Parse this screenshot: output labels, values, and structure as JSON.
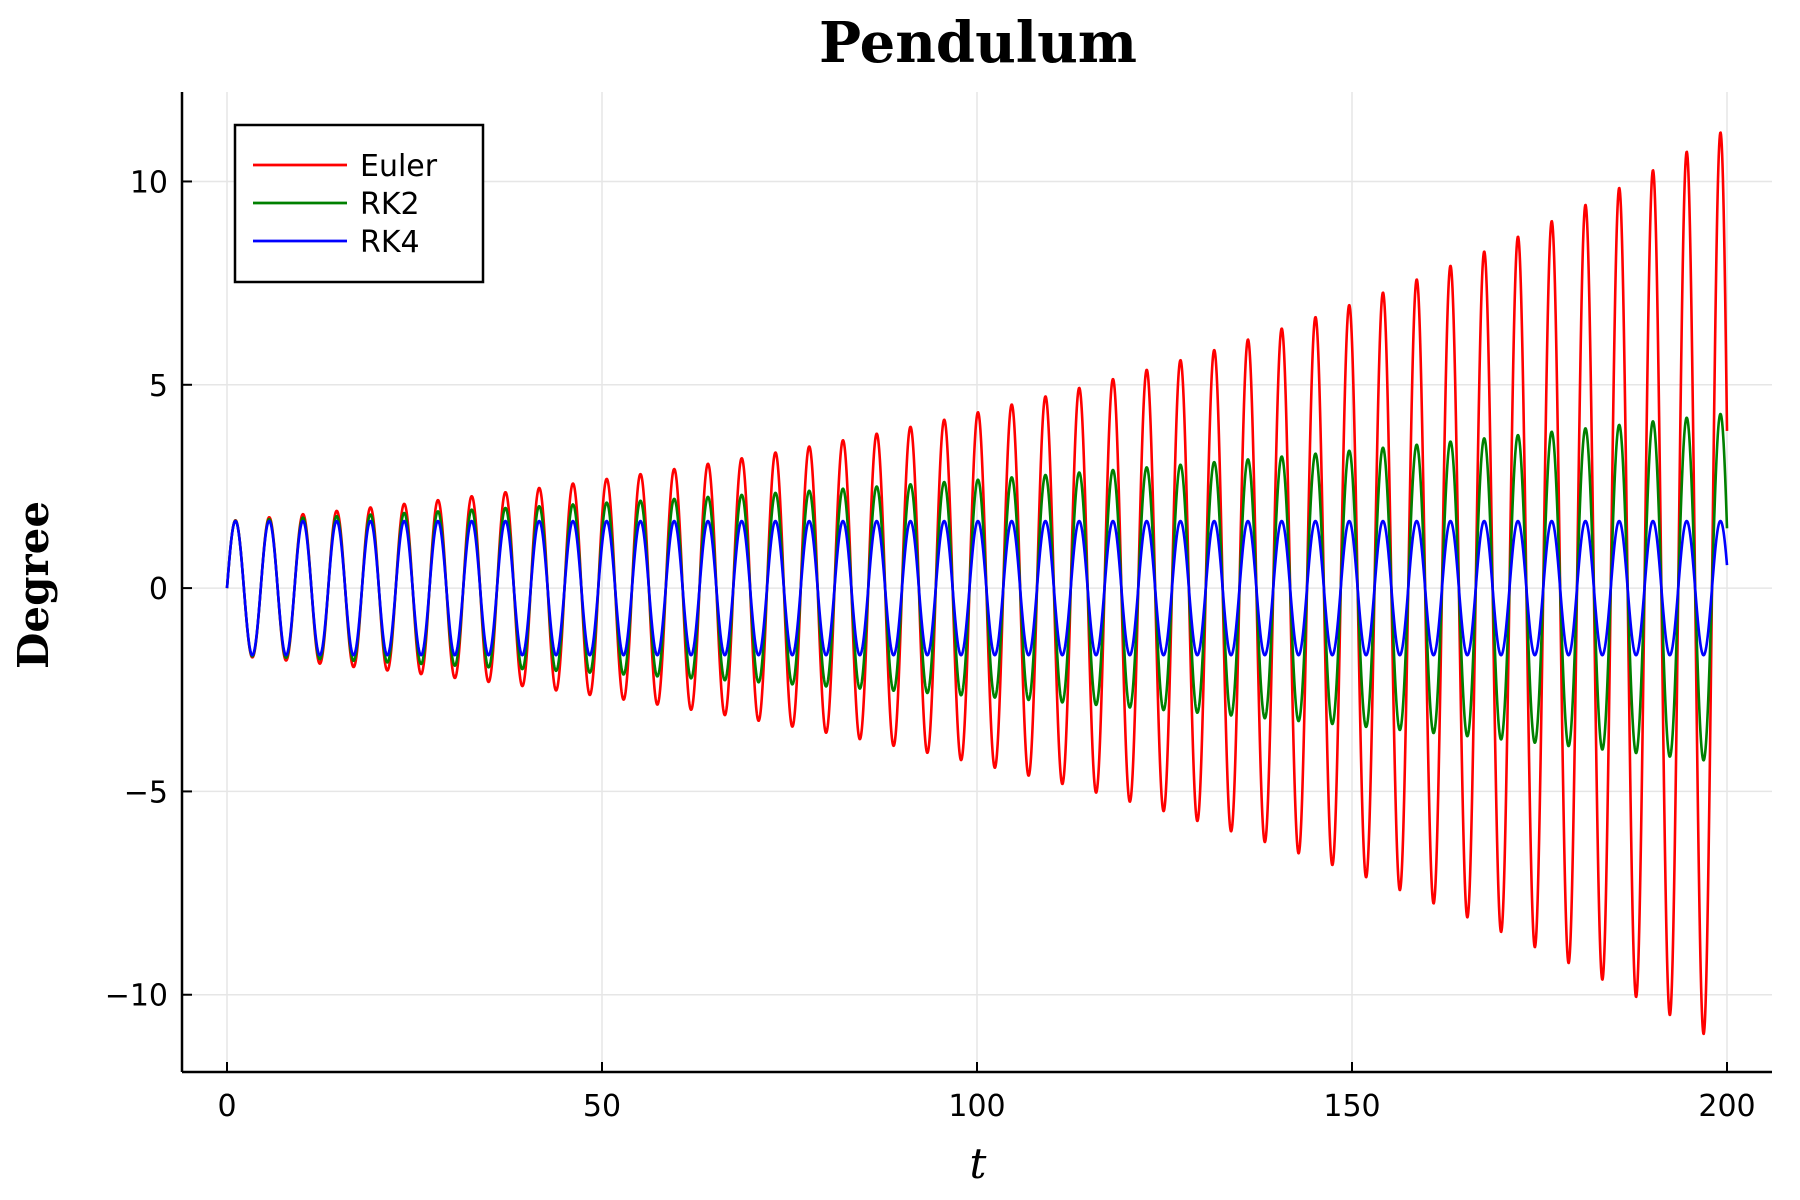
{
  "chart_data": {
    "type": "line",
    "title": "Pendulum",
    "xlabel": "t",
    "ylabel": "Degree",
    "xlim": [
      -6,
      206
    ],
    "ylim": [
      -11.9,
      12.2
    ],
    "xticks": [
      0,
      50,
      100,
      150,
      200
    ],
    "xtick_labels": [
      "0",
      "50",
      "100",
      "150",
      "200"
    ],
    "yticks": [
      -10,
      -5,
      0,
      5,
      10
    ],
    "ytick_labels": [
      "−10",
      "−5",
      "0",
      "5",
      "10"
    ],
    "grid": true,
    "legend_position": "top-left",
    "period": 4.5,
    "x_range": [
      0,
      200
    ],
    "series": [
      {
        "name": "Euler",
        "color": "#ff0000",
        "amplitude_start": 1.65,
        "amplitude_end": 11.3,
        "growth": "exponential"
      },
      {
        "name": "RK2",
        "color": "#008000",
        "amplitude_start": 1.65,
        "amplitude_end": 4.3,
        "growth": "exponential"
      },
      {
        "name": "RK4",
        "color": "#0000ff",
        "amplitude_start": 1.65,
        "amplitude_end": 1.65,
        "growth": "none"
      }
    ]
  }
}
